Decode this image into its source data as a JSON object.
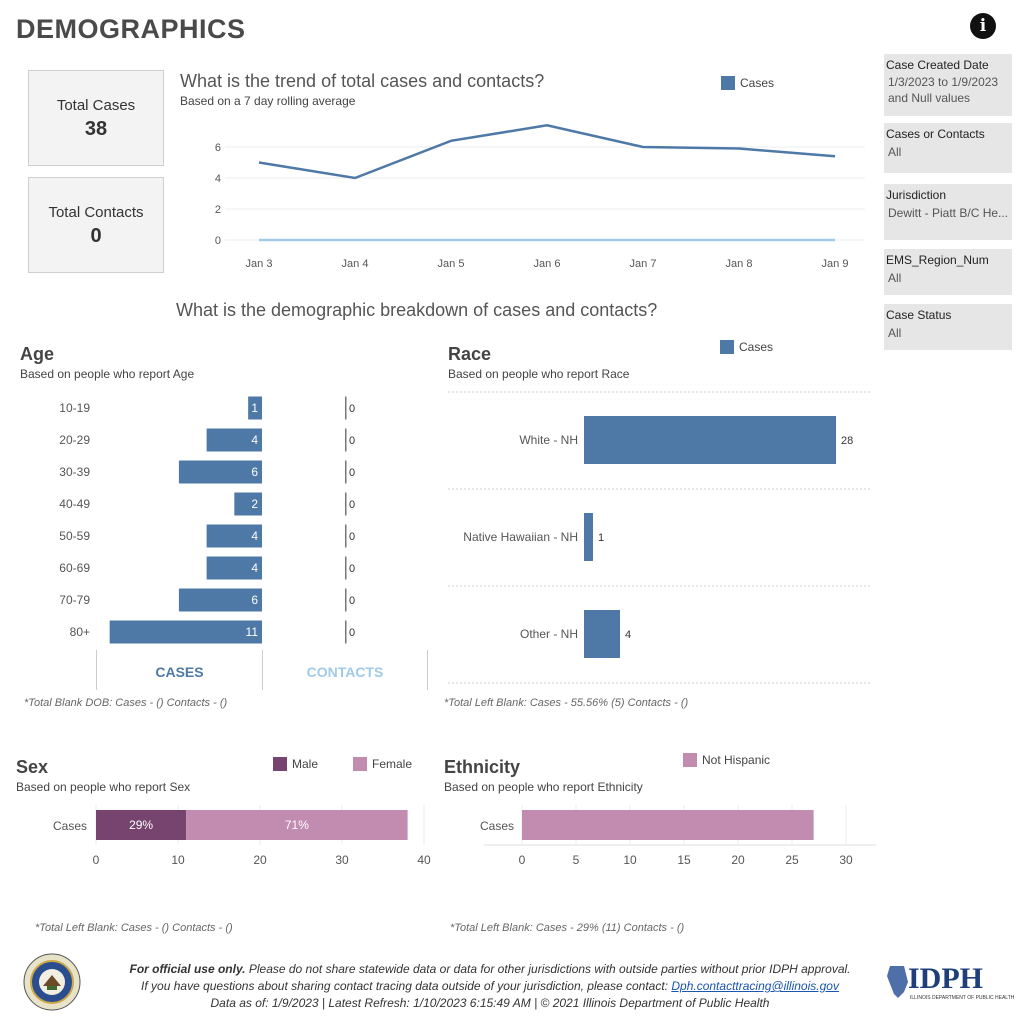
{
  "page": {
    "title": "DEMOGRAPHICS",
    "info_icon": "info-icon"
  },
  "kpis": [
    {
      "label": "Total Cases",
      "value": "38"
    },
    {
      "label": "Total Contacts",
      "value": "0"
    }
  ],
  "filters": [
    {
      "label": "Case Created Date",
      "value": "1/3/2023 to 1/9/2023 and Null values"
    },
    {
      "label": "Cases or Contacts",
      "value": "All"
    },
    {
      "label": "Jurisdiction",
      "value": "Dewitt - Piatt B/C He..."
    },
    {
      "label": "EMS_Region_Num",
      "value": "All"
    },
    {
      "label": "Case Status",
      "value": "All"
    }
  ],
  "colors": {
    "cases": "#4e79a7",
    "contacts": "#a0cbe8",
    "male": "#76446f",
    "female": "#c28bb0"
  },
  "trend": {
    "title": "What is the trend of total cases and contacts?",
    "subtitle": "Based on a 7 day rolling average"
  },
  "demographics_heading": "What is the demographic breakdown of cases and contacts?",
  "age": {
    "title": "Age",
    "subtitle": "Based on people who report Age",
    "tabs": {
      "cases": "CASES",
      "contacts": "CONTACTS"
    },
    "footnote": "*Total Blank DOB: Cases -  () Contacts -  ()"
  },
  "race": {
    "title": "Race",
    "subtitle": "Based on people who report Race",
    "footnote": "*Total Left Blank: Cases - 55.56% (5) Contacts -  ()"
  },
  "sex": {
    "title": "Sex",
    "subtitle": "Based on people who report Sex",
    "footnote": "*Total Left Blank: Cases -  () Contacts -  ()"
  },
  "ethnicity": {
    "title": "Ethnicity",
    "subtitle": "Based on people who report Ethnicity",
    "footnote": "*Total Left Blank: Cases - 29% (11) Contacts -  ()"
  },
  "footer": {
    "line1_bold": "For official use only.",
    "line1_rest": " Please do not share statewide data or data for other jurisdictions with outside parties without prior IDPH approval.",
    "line2_prefix": "If you have questions about sharing contact tracing data outside of your jurisdiction, please contact: ",
    "line2_link": "Dph.contacttracing@illinois.gov",
    "line3": "Data as of: 1/9/2023  |  Latest Refresh: 1/10/2023 6:15:49 AM  |  © 2021 Illinois Department of Public Health",
    "logo_text": "IDPH",
    "logo_sub": "ILLINOIS DEPARTMENT OF PUBLIC HEALTH"
  },
  "chart_data": [
    {
      "id": "trend",
      "type": "line",
      "title": "What is the trend of total cases and contacts?",
      "x": [
        "Jan 3",
        "Jan 4",
        "Jan 5",
        "Jan 6",
        "Jan 7",
        "Jan 8",
        "Jan 9"
      ],
      "series": [
        {
          "name": "Cases",
          "values": [
            5.0,
            4.0,
            6.4,
            7.4,
            6.0,
            5.9,
            5.4
          ]
        },
        {
          "values": [
            0,
            0,
            0,
            0,
            0,
            0,
            0
          ]
        }
      ],
      "y_ticks": [
        0,
        2,
        4,
        6
      ],
      "ylim": [
        0,
        8
      ],
      "legend": "top-right"
    },
    {
      "id": "age",
      "type": "bar",
      "orientation": "horizontal",
      "categories": [
        "10-19",
        "20-29",
        "30-39",
        "40-49",
        "50-59",
        "60-69",
        "70-79",
        "80+"
      ],
      "series": [
        {
          "name": "CASES",
          "values": [
            1,
            4,
            6,
            2,
            4,
            4,
            6,
            11
          ]
        },
        {
          "name": "CONTACTS",
          "values": [
            0,
            0,
            0,
            0,
            0,
            0,
            0,
            0
          ]
        }
      ]
    },
    {
      "id": "race",
      "type": "bar",
      "orientation": "horizontal",
      "categories": [
        "White - NH",
        "Native Hawaiian - NH",
        "Other - NH"
      ],
      "series": [
        {
          "name": "Cases",
          "values": [
            28,
            1,
            4
          ]
        }
      ],
      "legend": "top"
    },
    {
      "id": "sex",
      "type": "bar",
      "orientation": "horizontal",
      "stacked": true,
      "categories": [
        "Cases"
      ],
      "series": [
        {
          "name": "Male",
          "values": [
            11
          ],
          "label": "29%"
        },
        {
          "name": "Female",
          "values": [
            27
          ],
          "label": "71%"
        }
      ],
      "x_ticks": [
        0,
        10,
        20,
        30,
        40
      ],
      "xlim": [
        0,
        40
      ],
      "legend": "top-right"
    },
    {
      "id": "ethnicity",
      "type": "bar",
      "orientation": "horizontal",
      "categories": [
        "Cases"
      ],
      "series": [
        {
          "name": "Not Hispanic",
          "values": [
            27
          ]
        }
      ],
      "x_ticks": [
        0,
        5,
        10,
        15,
        20,
        25,
        30
      ],
      "xlim": [
        0,
        32
      ],
      "legend": "top"
    }
  ]
}
